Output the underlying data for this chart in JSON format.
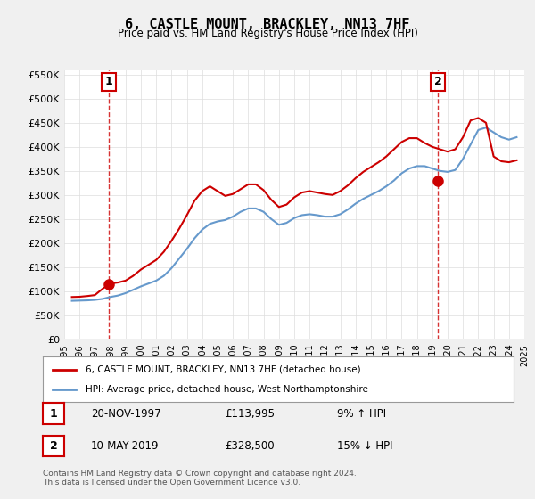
{
  "title": "6, CASTLE MOUNT, BRACKLEY, NN13 7HF",
  "subtitle": "Price paid vs. HM Land Registry's House Price Index (HPI)",
  "xlabel": "",
  "ylabel": "",
  "ylim": [
    0,
    560000
  ],
  "yticks": [
    0,
    50000,
    100000,
    150000,
    200000,
    250000,
    300000,
    350000,
    400000,
    450000,
    500000,
    550000
  ],
  "ytick_labels": [
    "£0",
    "£50K",
    "£100K",
    "£150K",
    "£200K",
    "£250K",
    "£300K",
    "£350K",
    "£400K",
    "£450K",
    "£500K",
    "£550K"
  ],
  "x_start_year": 1995,
  "x_end_year": 2025,
  "marker1_year": 1997.9,
  "marker1_value": 113995,
  "marker1_label": "1",
  "marker1_date": "20-NOV-1997",
  "marker1_price": "£113,995",
  "marker1_hpi": "9% ↑ HPI",
  "marker2_year": 2019.37,
  "marker2_value": 328500,
  "marker2_label": "2",
  "marker2_date": "10-MAY-2019",
  "marker2_price": "£328,500",
  "marker2_hpi": "15% ↓ HPI",
  "line_color_red": "#cc0000",
  "line_color_blue": "#6699cc",
  "dashed_line_color": "#cc0000",
  "background_color": "#f0f0f0",
  "plot_bg_color": "#ffffff",
  "grid_color": "#dddddd",
  "legend_entry1": "6, CASTLE MOUNT, BRACKLEY, NN13 7HF (detached house)",
  "legend_entry2": "HPI: Average price, detached house, West Northamptonshire",
  "footer": "Contains HM Land Registry data © Crown copyright and database right 2024.\nThis data is licensed under the Open Government Licence v3.0.",
  "hpi_data": {
    "years": [
      1995.5,
      1996.0,
      1996.5,
      1997.0,
      1997.5,
      1998.0,
      1998.5,
      1999.0,
      1999.5,
      2000.0,
      2000.5,
      2001.0,
      2001.5,
      2002.0,
      2002.5,
      2003.0,
      2003.5,
      2004.0,
      2004.5,
      2005.0,
      2005.5,
      2006.0,
      2006.5,
      2007.0,
      2007.5,
      2008.0,
      2008.5,
      2009.0,
      2009.5,
      2010.0,
      2010.5,
      2011.0,
      2011.5,
      2012.0,
      2012.5,
      2013.0,
      2013.5,
      2014.0,
      2014.5,
      2015.0,
      2015.5,
      2016.0,
      2016.5,
      2017.0,
      2017.5,
      2018.0,
      2018.5,
      2019.0,
      2019.5,
      2020.0,
      2020.5,
      2021.0,
      2021.5,
      2022.0,
      2022.5,
      2023.0,
      2023.5,
      2024.0,
      2024.5
    ],
    "values": [
      80000,
      80500,
      81000,
      82000,
      84000,
      88000,
      91000,
      96000,
      103000,
      110000,
      116000,
      122000,
      132000,
      148000,
      168000,
      188000,
      210000,
      228000,
      240000,
      245000,
      248000,
      255000,
      265000,
      272000,
      272000,
      265000,
      250000,
      238000,
      242000,
      252000,
      258000,
      260000,
      258000,
      255000,
      255000,
      260000,
      270000,
      282000,
      292000,
      300000,
      308000,
      318000,
      330000,
      345000,
      355000,
      360000,
      360000,
      355000,
      350000,
      348000,
      352000,
      375000,
      405000,
      435000,
      440000,
      430000,
      420000,
      415000,
      420000
    ]
  },
  "price_data": {
    "years": [
      1995.5,
      1996.0,
      1996.5,
      1997.0,
      1997.5,
      1998.0,
      1998.5,
      1999.0,
      1999.5,
      2000.0,
      2000.5,
      2001.0,
      2001.5,
      2002.0,
      2002.5,
      2003.0,
      2003.5,
      2004.0,
      2004.5,
      2005.0,
      2005.5,
      2006.0,
      2006.5,
      2007.0,
      2007.5,
      2008.0,
      2008.5,
      2009.0,
      2009.5,
      2010.0,
      2010.5,
      2011.0,
      2011.5,
      2012.0,
      2012.5,
      2013.0,
      2013.5,
      2014.0,
      2014.5,
      2015.0,
      2015.5,
      2016.0,
      2016.5,
      2017.0,
      2017.5,
      2018.0,
      2018.5,
      2019.0,
      2019.5,
      2020.0,
      2020.5,
      2021.0,
      2021.5,
      2022.0,
      2022.5,
      2023.0,
      2023.5,
      2024.0,
      2024.5
    ],
    "values": [
      88000,
      88500,
      90000,
      92000,
      105000,
      116000,
      118000,
      122000,
      132000,
      145000,
      155000,
      165000,
      182000,
      205000,
      230000,
      258000,
      288000,
      308000,
      318000,
      308000,
      298000,
      302000,
      312000,
      322000,
      322000,
      310000,
      290000,
      275000,
      280000,
      295000,
      305000,
      308000,
      305000,
      302000,
      300000,
      308000,
      320000,
      335000,
      348000,
      358000,
      368000,
      380000,
      395000,
      410000,
      418000,
      418000,
      408000,
      400000,
      395000,
      390000,
      395000,
      420000,
      455000,
      460000,
      450000,
      380000,
      370000,
      368000,
      372000
    ]
  }
}
